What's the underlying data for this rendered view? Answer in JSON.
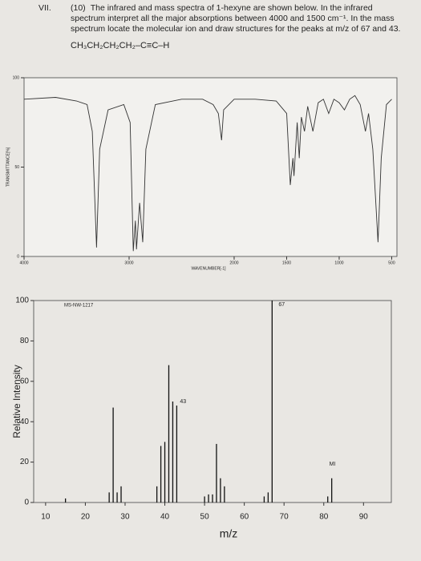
{
  "question": {
    "number": "VII.",
    "points": "(10)",
    "text": "The infrared and mass spectra of 1-hexyne are shown below. In the infrared spectrum interpret all the major absorptions between 4000 and 1500 cm⁻¹. In the mass spectrum locate the molecular ion and draw structures for the peaks at m/z of 67 and 43.",
    "formula": "CH₃CH₂CH₂CH₂–C≡C–H"
  },
  "chart_data": [
    {
      "type": "line",
      "x_label": "WAVENUMBER[-1]",
      "y_label": "TRANSMITTANCE[%]",
      "color": "#333333",
      "x": [
        4000,
        3700,
        3500,
        3400,
        3350,
        3310,
        3280,
        3200,
        3050,
        2990,
        2960,
        2940,
        2930,
        2900,
        2870,
        2840,
        2750,
        2500,
        2300,
        2200,
        2150,
        2120,
        2100,
        2000,
        1800,
        1600,
        1500,
        1465,
        1440,
        1430,
        1400,
        1380,
        1360,
        1330,
        1300,
        1250,
        1200,
        1150,
        1100,
        1050,
        1000,
        950,
        900,
        850,
        800,
        750,
        720,
        680,
        630,
        600,
        550,
        500
      ],
      "values": [
        88,
        89,
        87,
        85,
        70,
        5,
        60,
        82,
        85,
        75,
        3,
        20,
        4,
        30,
        8,
        60,
        85,
        88,
        88,
        85,
        80,
        65,
        82,
        88,
        88,
        87,
        80,
        40,
        55,
        45,
        75,
        55,
        78,
        70,
        84,
        70,
        86,
        88,
        80,
        88,
        86,
        82,
        88,
        90,
        85,
        70,
        80,
        60,
        8,
        55,
        85,
        88
      ],
      "xlim": [
        4000,
        450
      ],
      "xticks": [
        4000,
        3000,
        2000,
        1500,
        1000,
        500
      ],
      "ylim": [
        0,
        100
      ],
      "yticks": [
        0,
        50,
        100
      ]
    },
    {
      "type": "bar",
      "code": "MS-NW-1217",
      "x_label": "m/z",
      "y_label": "Relative Intensity",
      "color": "#111111",
      "x": [
        15,
        26,
        27,
        28,
        29,
        38,
        39,
        40,
        41,
        42,
        43,
        50,
        51,
        52,
        53,
        54,
        55,
        65,
        66,
        67,
        81,
        82
      ],
      "values": [
        2,
        5,
        47,
        5,
        8,
        8,
        28,
        30,
        68,
        50,
        48,
        3,
        4,
        4,
        29,
        12,
        8,
        3,
        5,
        100,
        3,
        12
      ],
      "xlim": [
        7,
        97
      ],
      "xticks": [
        10,
        20,
        30,
        40,
        50,
        60,
        70,
        80,
        90
      ],
      "ylim": [
        0,
        100
      ],
      "yticks": [
        0,
        20,
        40,
        60,
        80,
        100
      ],
      "annotations": [
        "67",
        "43",
        "MI"
      ]
    }
  ]
}
